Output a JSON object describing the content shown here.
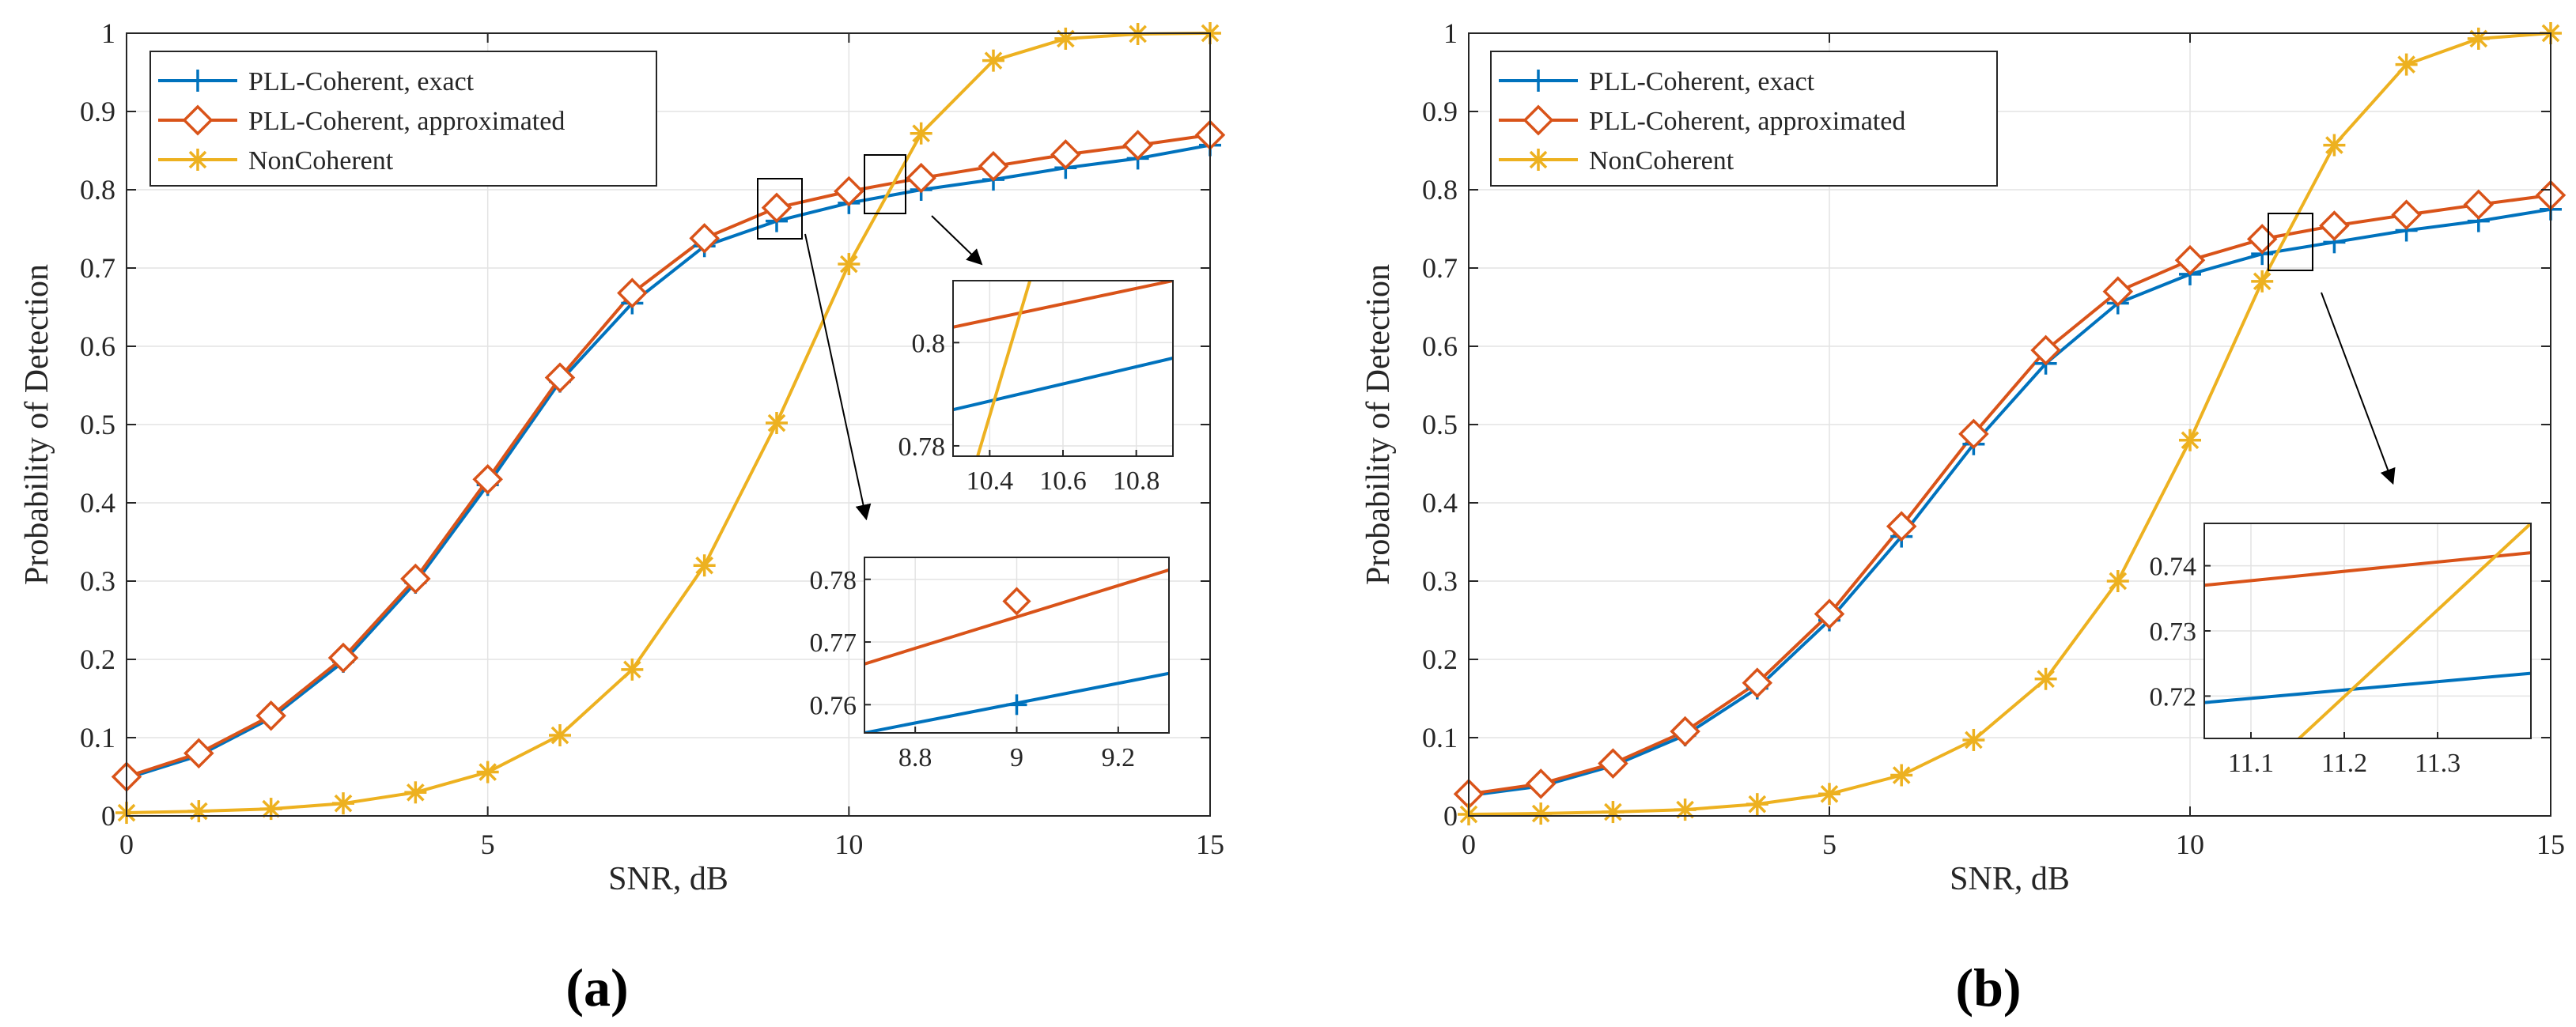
{
  "figure": {
    "panels": [
      "(a)",
      "(b)"
    ]
  },
  "series_style": {
    "exact": {
      "color": "#0072BD",
      "marker": "plus"
    },
    "approx": {
      "color": "#D95319",
      "marker": "diamond"
    },
    "noncoh": {
      "color": "#EDB120",
      "marker": "asterisk"
    }
  },
  "chart_data": [
    {
      "type": "line",
      "title": "",
      "panel": "(a)",
      "xlabel": "SNR, dB",
      "ylabel": "Probability of Detection",
      "xlim": [
        0,
        15
      ],
      "ylim": [
        0,
        1
      ],
      "xticks": [
        "0",
        "5",
        "10",
        "15"
      ],
      "yticks": [
        "0",
        "0.1",
        "0.2",
        "0.3",
        "0.4",
        "0.5",
        "0.6",
        "0.7",
        "0.8",
        "0.9",
        "1"
      ],
      "grid": true,
      "legend": "top-left",
      "x": [
        0,
        1,
        2,
        3,
        4,
        5,
        6,
        7,
        8,
        9,
        10,
        11,
        12,
        13,
        14,
        15
      ],
      "series": [
        {
          "key": "exact",
          "name": "PLL-Coherent, exact",
          "values": [
            0.048,
            0.077,
            0.125,
            0.197,
            0.298,
            0.423,
            0.555,
            0.655,
            0.728,
            0.76,
            0.783,
            0.8,
            0.813,
            0.828,
            0.84,
            0.857
          ]
        },
        {
          "key": "approx",
          "name": "PLL-Coherent, approximated",
          "values": [
            0.05,
            0.08,
            0.128,
            0.202,
            0.303,
            0.43,
            0.56,
            0.668,
            0.738,
            0.777,
            0.798,
            0.815,
            0.83,
            0.845,
            0.857,
            0.87
          ]
        },
        {
          "key": "noncoh",
          "name": "NonCoherent",
          "values": [
            0.004,
            0.006,
            0.009,
            0.016,
            0.03,
            0.056,
            0.103,
            0.187,
            0.32,
            0.502,
            0.705,
            0.872,
            0.965,
            0.993,
            0.999,
            1.0
          ]
        }
      ],
      "insets": [
        {
          "xlim": [
            10.3,
            10.9
          ],
          "ylim": [
            0.778,
            0.812
          ],
          "xticks": [
            "10.4",
            "10.6",
            "10.8"
          ],
          "yticks": [
            "0.78",
            "0.8"
          ],
          "lines": [
            {
              "key": "exact",
              "y_at_xmin": 0.787,
              "y_at_xmax": 0.797
            },
            {
              "key": "approx",
              "y_at_xmin": 0.803,
              "y_at_xmax": 0.812
            },
            {
              "key": "noncoh",
              "y_at_xmin": 0.762,
              "y_at_xmax": 0.905
            }
          ]
        },
        {
          "xlim": [
            8.7,
            9.3
          ],
          "ylim": [
            0.7555,
            0.7835
          ],
          "xticks": [
            "8.8",
            "9",
            "9.2"
          ],
          "yticks": [
            "0.76",
            "0.77",
            "0.78"
          ],
          "lines": [
            {
              "key": "exact",
              "y_at_xmin": 0.7555,
              "y_at_xmax": 0.765
            },
            {
              "key": "approx",
              "y_at_xmin": 0.7665,
              "y_at_xmax": 0.7815
            }
          ],
          "markers": [
            {
              "key": "exact",
              "x": 9,
              "y": 0.76
            },
            {
              "key": "approx",
              "x": 9,
              "y": 0.7765
            }
          ]
        }
      ]
    },
    {
      "type": "line",
      "title": "",
      "panel": "(b)",
      "xlabel": "SNR, dB",
      "ylabel": "Probability of Detection",
      "xlim": [
        0,
        15
      ],
      "ylim": [
        0,
        1
      ],
      "xticks": [
        "0",
        "5",
        "10",
        "15"
      ],
      "yticks": [
        "0",
        "0.1",
        "0.2",
        "0.3",
        "0.4",
        "0.5",
        "0.6",
        "0.7",
        "0.8",
        "0.9",
        "1"
      ],
      "grid": true,
      "legend": "top-left",
      "x": [
        0,
        1,
        2,
        3,
        4,
        5,
        6,
        7,
        8,
        9,
        10,
        11,
        12,
        13,
        14,
        15
      ],
      "series": [
        {
          "key": "exact",
          "name": "PLL-Coherent, exact",
          "values": [
            0.026,
            0.038,
            0.064,
            0.103,
            0.163,
            0.25,
            0.357,
            0.475,
            0.578,
            0.655,
            0.692,
            0.718,
            0.733,
            0.748,
            0.76,
            0.775
          ]
        },
        {
          "key": "approx",
          "name": "PLL-Coherent, approximated",
          "values": [
            0.028,
            0.041,
            0.067,
            0.108,
            0.17,
            0.258,
            0.37,
            0.488,
            0.595,
            0.67,
            0.71,
            0.737,
            0.754,
            0.768,
            0.781,
            0.793
          ]
        },
        {
          "key": "noncoh",
          "name": "NonCoherent",
          "values": [
            0.002,
            0.003,
            0.005,
            0.008,
            0.015,
            0.028,
            0.052,
            0.097,
            0.175,
            0.3,
            0.48,
            0.683,
            0.857,
            0.96,
            0.993,
            1.0
          ]
        }
      ],
      "insets": [
        {
          "xlim": [
            11.05,
            11.4
          ],
          "ylim": [
            0.7135,
            0.7465
          ],
          "xticks": [
            "11.1",
            "11.2",
            "11.3"
          ],
          "yticks": [
            "0.72",
            "0.73",
            "0.74"
          ],
          "lines": [
            {
              "key": "exact",
              "y_at_xmin": 0.719,
              "y_at_xmax": 0.7235
            },
            {
              "key": "approx",
              "y_at_xmin": 0.737,
              "y_at_xmax": 0.742
            },
            {
              "key": "noncoh",
              "y_at_xmin": 0.7,
              "y_at_xmax": 0.7465
            }
          ]
        }
      ]
    }
  ]
}
